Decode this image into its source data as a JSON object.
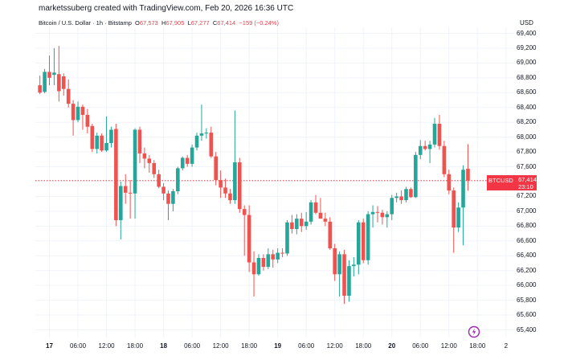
{
  "credit": "marketssuberg created with TradingView.com, Feb 20, 2026 16:36 UTC",
  "legend": {
    "symbol": "Bitcoin / U.S. Dollar · 1h · Bitstamp",
    "o_label": "O",
    "o": "67,573",
    "h_label": "H",
    "h": "67,905",
    "l_label": "L",
    "l": "67,277",
    "c_label": "C",
    "c": "67,414",
    "change": "−159 (−0.24%)"
  },
  "currency": "USD",
  "price_tag": {
    "symbol": "BTCUSD",
    "price": "67,414",
    "countdown": "23:10"
  },
  "colors": {
    "up": "#26a69a",
    "down": "#ef5350",
    "price_line": "#f23645"
  },
  "icons": [
    "tradingview-timeline-icon"
  ],
  "chart_data": {
    "type": "candlestick",
    "ylim": [
      65300,
      69500
    ],
    "y_ticks": [
      "69,400",
      "69,200",
      "69,000",
      "68,800",
      "68,600",
      "68,400",
      "68,200",
      "68,000",
      "67,800",
      "67,600",
      "67,400",
      "67,200",
      "67,000",
      "66,800",
      "66,600",
      "66,400",
      "66,200",
      "66,000",
      "65,800",
      "65,600",
      "65,400"
    ],
    "x_labels": [
      {
        "t": 0,
        "text": "17",
        "bold": true
      },
      {
        "t": 6,
        "text": "06:00",
        "bold": false
      },
      {
        "t": 12,
        "text": "12:00",
        "bold": false
      },
      {
        "t": 18,
        "text": "18:00",
        "bold": false
      },
      {
        "t": 24,
        "text": "18",
        "bold": true
      },
      {
        "t": 30,
        "text": "06:00",
        "bold": false
      },
      {
        "t": 36,
        "text": "12:00",
        "bold": false
      },
      {
        "t": 42,
        "text": "18:00",
        "bold": false
      },
      {
        "t": 48,
        "text": "19",
        "bold": true
      },
      {
        "t": 54,
        "text": "06:00",
        "bold": false
      },
      {
        "t": 60,
        "text": "12:00",
        "bold": false
      },
      {
        "t": 66,
        "text": "18:00",
        "bold": false
      },
      {
        "t": 72,
        "text": "20",
        "bold": true
      },
      {
        "t": 78,
        "text": "06:00",
        "bold": false
      },
      {
        "t": 84,
        "text": "12:00",
        "bold": false
      },
      {
        "t": 90,
        "text": "18:00",
        "bold": false
      },
      {
        "t": 96,
        "text": "2",
        "bold": false
      }
    ],
    "last_price": 67414,
    "candles": [
      {
        "t": -2,
        "o": 68700,
        "h": 68830,
        "l": 68580,
        "c": 68600
      },
      {
        "t": -1,
        "o": 68610,
        "h": 68920,
        "l": 68590,
        "c": 68880
      },
      {
        "t": 0,
        "o": 68880,
        "h": 69100,
        "l": 68700,
        "c": 68800
      },
      {
        "t": 1,
        "o": 68840,
        "h": 69200,
        "l": 68700,
        "c": 68870
      },
      {
        "t": 2,
        "o": 68850,
        "h": 69230,
        "l": 68480,
        "c": 68620
      },
      {
        "t": 3,
        "o": 68820,
        "h": 68860,
        "l": 68560,
        "c": 68650
      },
      {
        "t": 4,
        "o": 68650,
        "h": 68780,
        "l": 68400,
        "c": 68450
      },
      {
        "t": 5,
        "o": 68450,
        "h": 68500,
        "l": 68020,
        "c": 68230
      },
      {
        "t": 6,
        "o": 68230,
        "h": 68480,
        "l": 68200,
        "c": 68410
      },
      {
        "t": 7,
        "o": 68410,
        "h": 68440,
        "l": 68100,
        "c": 68300
      },
      {
        "t": 8,
        "o": 68300,
        "h": 68380,
        "l": 68050,
        "c": 68140
      },
      {
        "t": 9,
        "o": 68150,
        "h": 68180,
        "l": 67800,
        "c": 67840
      },
      {
        "t": 10,
        "o": 67840,
        "h": 68060,
        "l": 67780,
        "c": 68020
      },
      {
        "t": 11,
        "o": 68020,
        "h": 68050,
        "l": 67800,
        "c": 67820
      },
      {
        "t": 12,
        "o": 67820,
        "h": 68280,
        "l": 67800,
        "c": 67920
      },
      {
        "t": 13,
        "o": 67920,
        "h": 68140,
        "l": 67860,
        "c": 68100
      },
      {
        "t": 14,
        "o": 68110,
        "h": 68180,
        "l": 66800,
        "c": 66880
      },
      {
        "t": 15,
        "o": 66880,
        "h": 67400,
        "l": 66620,
        "c": 67340
      },
      {
        "t": 16,
        "o": 67340,
        "h": 67500,
        "l": 67100,
        "c": 67250
      },
      {
        "t": 17,
        "o": 67250,
        "h": 67420,
        "l": 66900,
        "c": 67240
      },
      {
        "t": 18,
        "o": 67240,
        "h": 68120,
        "l": 66900,
        "c": 68100
      },
      {
        "t": 19,
        "o": 68100,
        "h": 68140,
        "l": 67650,
        "c": 67780
      },
      {
        "t": 20,
        "o": 67780,
        "h": 67860,
        "l": 67580,
        "c": 67710
      },
      {
        "t": 21,
        "o": 67710,
        "h": 67760,
        "l": 67520,
        "c": 67650
      },
      {
        "t": 22,
        "o": 67650,
        "h": 67690,
        "l": 67450,
        "c": 67500
      },
      {
        "t": 23,
        "o": 67500,
        "h": 67560,
        "l": 67310,
        "c": 67330
      },
      {
        "t": 24,
        "o": 67330,
        "h": 67380,
        "l": 67150,
        "c": 67240
      },
      {
        "t": 25,
        "o": 67240,
        "h": 67280,
        "l": 66880,
        "c": 67100
      },
      {
        "t": 26,
        "o": 67100,
        "h": 67300,
        "l": 67000,
        "c": 67270
      },
      {
        "t": 27,
        "o": 67270,
        "h": 67600,
        "l": 67230,
        "c": 67580
      },
      {
        "t": 28,
        "o": 67580,
        "h": 67740,
        "l": 67550,
        "c": 67720
      },
      {
        "t": 29,
        "o": 67720,
        "h": 67760,
        "l": 67600,
        "c": 67640
      },
      {
        "t": 30,
        "o": 67640,
        "h": 67900,
        "l": 67600,
        "c": 67860
      },
      {
        "t": 31,
        "o": 67860,
        "h": 68060,
        "l": 67820,
        "c": 68020
      },
      {
        "t": 32,
        "o": 68020,
        "h": 68440,
        "l": 67950,
        "c": 68050
      },
      {
        "t": 33,
        "o": 68050,
        "h": 68120,
        "l": 67980,
        "c": 68060
      },
      {
        "t": 34,
        "o": 68060,
        "h": 68140,
        "l": 67720,
        "c": 67740
      },
      {
        "t": 35,
        "o": 67740,
        "h": 67800,
        "l": 67350,
        "c": 67420
      },
      {
        "t": 36,
        "o": 67420,
        "h": 67550,
        "l": 67180,
        "c": 67320
      },
      {
        "t": 37,
        "o": 67320,
        "h": 67440,
        "l": 67180,
        "c": 67240
      },
      {
        "t": 38,
        "o": 67240,
        "h": 67300,
        "l": 67100,
        "c": 67150
      },
      {
        "t": 39,
        "o": 67150,
        "h": 68360,
        "l": 67100,
        "c": 67660
      },
      {
        "t": 40,
        "o": 67660,
        "h": 67720,
        "l": 66980,
        "c": 67030
      },
      {
        "t": 41,
        "o": 67030,
        "h": 67080,
        "l": 66400,
        "c": 66950
      },
      {
        "t": 42,
        "o": 66950,
        "h": 67080,
        "l": 66180,
        "c": 66310
      },
      {
        "t": 43,
        "o": 66310,
        "h": 66460,
        "l": 65850,
        "c": 66150
      },
      {
        "t": 44,
        "o": 66150,
        "h": 66420,
        "l": 66130,
        "c": 66370
      },
      {
        "t": 45,
        "o": 66370,
        "h": 66420,
        "l": 66200,
        "c": 66250
      },
      {
        "t": 46,
        "o": 66250,
        "h": 66500,
        "l": 66220,
        "c": 66420
      },
      {
        "t": 47,
        "o": 66420,
        "h": 66480,
        "l": 66240,
        "c": 66350
      },
      {
        "t": 48,
        "o": 66350,
        "h": 66500,
        "l": 66300,
        "c": 66440
      },
      {
        "t": 49,
        "o": 66440,
        "h": 66500,
        "l": 66380,
        "c": 66430
      },
      {
        "t": 50,
        "o": 66430,
        "h": 66880,
        "l": 66400,
        "c": 66850
      },
      {
        "t": 51,
        "o": 66850,
        "h": 66950,
        "l": 66700,
        "c": 66760
      },
      {
        "t": 52,
        "o": 66760,
        "h": 66960,
        "l": 66690,
        "c": 66900
      },
      {
        "t": 53,
        "o": 66900,
        "h": 66980,
        "l": 66720,
        "c": 66800
      },
      {
        "t": 54,
        "o": 66800,
        "h": 66990,
        "l": 66750,
        "c": 66860
      },
      {
        "t": 55,
        "o": 66860,
        "h": 67150,
        "l": 66820,
        "c": 67120
      },
      {
        "t": 56,
        "o": 67120,
        "h": 67220,
        "l": 66960,
        "c": 66980
      },
      {
        "t": 57,
        "o": 66980,
        "h": 67180,
        "l": 66940,
        "c": 66900
      },
      {
        "t": 58,
        "o": 66900,
        "h": 66980,
        "l": 66800,
        "c": 66860
      },
      {
        "t": 59,
        "o": 66860,
        "h": 66920,
        "l": 66480,
        "c": 66500
      },
      {
        "t": 60,
        "o": 66500,
        "h": 66560,
        "l": 66060,
        "c": 66150
      },
      {
        "t": 61,
        "o": 66150,
        "h": 66460,
        "l": 65850,
        "c": 66420
      },
      {
        "t": 62,
        "o": 66420,
        "h": 66480,
        "l": 65750,
        "c": 65860
      },
      {
        "t": 63,
        "o": 65860,
        "h": 66340,
        "l": 65780,
        "c": 66260
      },
      {
        "t": 64,
        "o": 66260,
        "h": 66380,
        "l": 66120,
        "c": 66280
      },
      {
        "t": 65,
        "o": 66280,
        "h": 66880,
        "l": 66150,
        "c": 66850
      },
      {
        "t": 66,
        "o": 66850,
        "h": 66900,
        "l": 66300,
        "c": 66340
      },
      {
        "t": 67,
        "o": 66340,
        "h": 67000,
        "l": 66280,
        "c": 66960
      },
      {
        "t": 68,
        "o": 66960,
        "h": 67080,
        "l": 66780,
        "c": 66990
      },
      {
        "t": 69,
        "o": 66990,
        "h": 67070,
        "l": 66850,
        "c": 66980
      },
      {
        "t": 70,
        "o": 66980,
        "h": 67020,
        "l": 66820,
        "c": 66920
      },
      {
        "t": 71,
        "o": 66920,
        "h": 67000,
        "l": 66780,
        "c": 66960
      },
      {
        "t": 72,
        "o": 66960,
        "h": 67220,
        "l": 66880,
        "c": 67180
      },
      {
        "t": 73,
        "o": 67180,
        "h": 67250,
        "l": 67120,
        "c": 67200
      },
      {
        "t": 74,
        "o": 67200,
        "h": 67280,
        "l": 67100,
        "c": 67150
      },
      {
        "t": 75,
        "o": 67150,
        "h": 67330,
        "l": 67120,
        "c": 67300
      },
      {
        "t": 76,
        "o": 67300,
        "h": 67320,
        "l": 67180,
        "c": 67190
      },
      {
        "t": 77,
        "o": 67190,
        "h": 67800,
        "l": 67180,
        "c": 67760
      },
      {
        "t": 78,
        "o": 67760,
        "h": 67960,
        "l": 67700,
        "c": 67880
      },
      {
        "t": 79,
        "o": 67880,
        "h": 67950,
        "l": 67820,
        "c": 67840
      },
      {
        "t": 80,
        "o": 67840,
        "h": 67950,
        "l": 67650,
        "c": 67900
      },
      {
        "t": 81,
        "o": 67900,
        "h": 68260,
        "l": 67860,
        "c": 68180
      },
      {
        "t": 82,
        "o": 68180,
        "h": 68300,
        "l": 67830,
        "c": 67880
      },
      {
        "t": 83,
        "o": 67880,
        "h": 67950,
        "l": 67460,
        "c": 67500
      },
      {
        "t": 84,
        "o": 67500,
        "h": 67560,
        "l": 67230,
        "c": 67280
      },
      {
        "t": 85,
        "o": 67280,
        "h": 67320,
        "l": 66440,
        "c": 66780
      },
      {
        "t": 86,
        "o": 66780,
        "h": 67120,
        "l": 66720,
        "c": 67050
      },
      {
        "t": 87,
        "o": 67050,
        "h": 67620,
        "l": 66540,
        "c": 67560
      },
      {
        "t": 88,
        "o": 67573,
        "h": 67905,
        "l": 67277,
        "c": 67414
      }
    ]
  }
}
